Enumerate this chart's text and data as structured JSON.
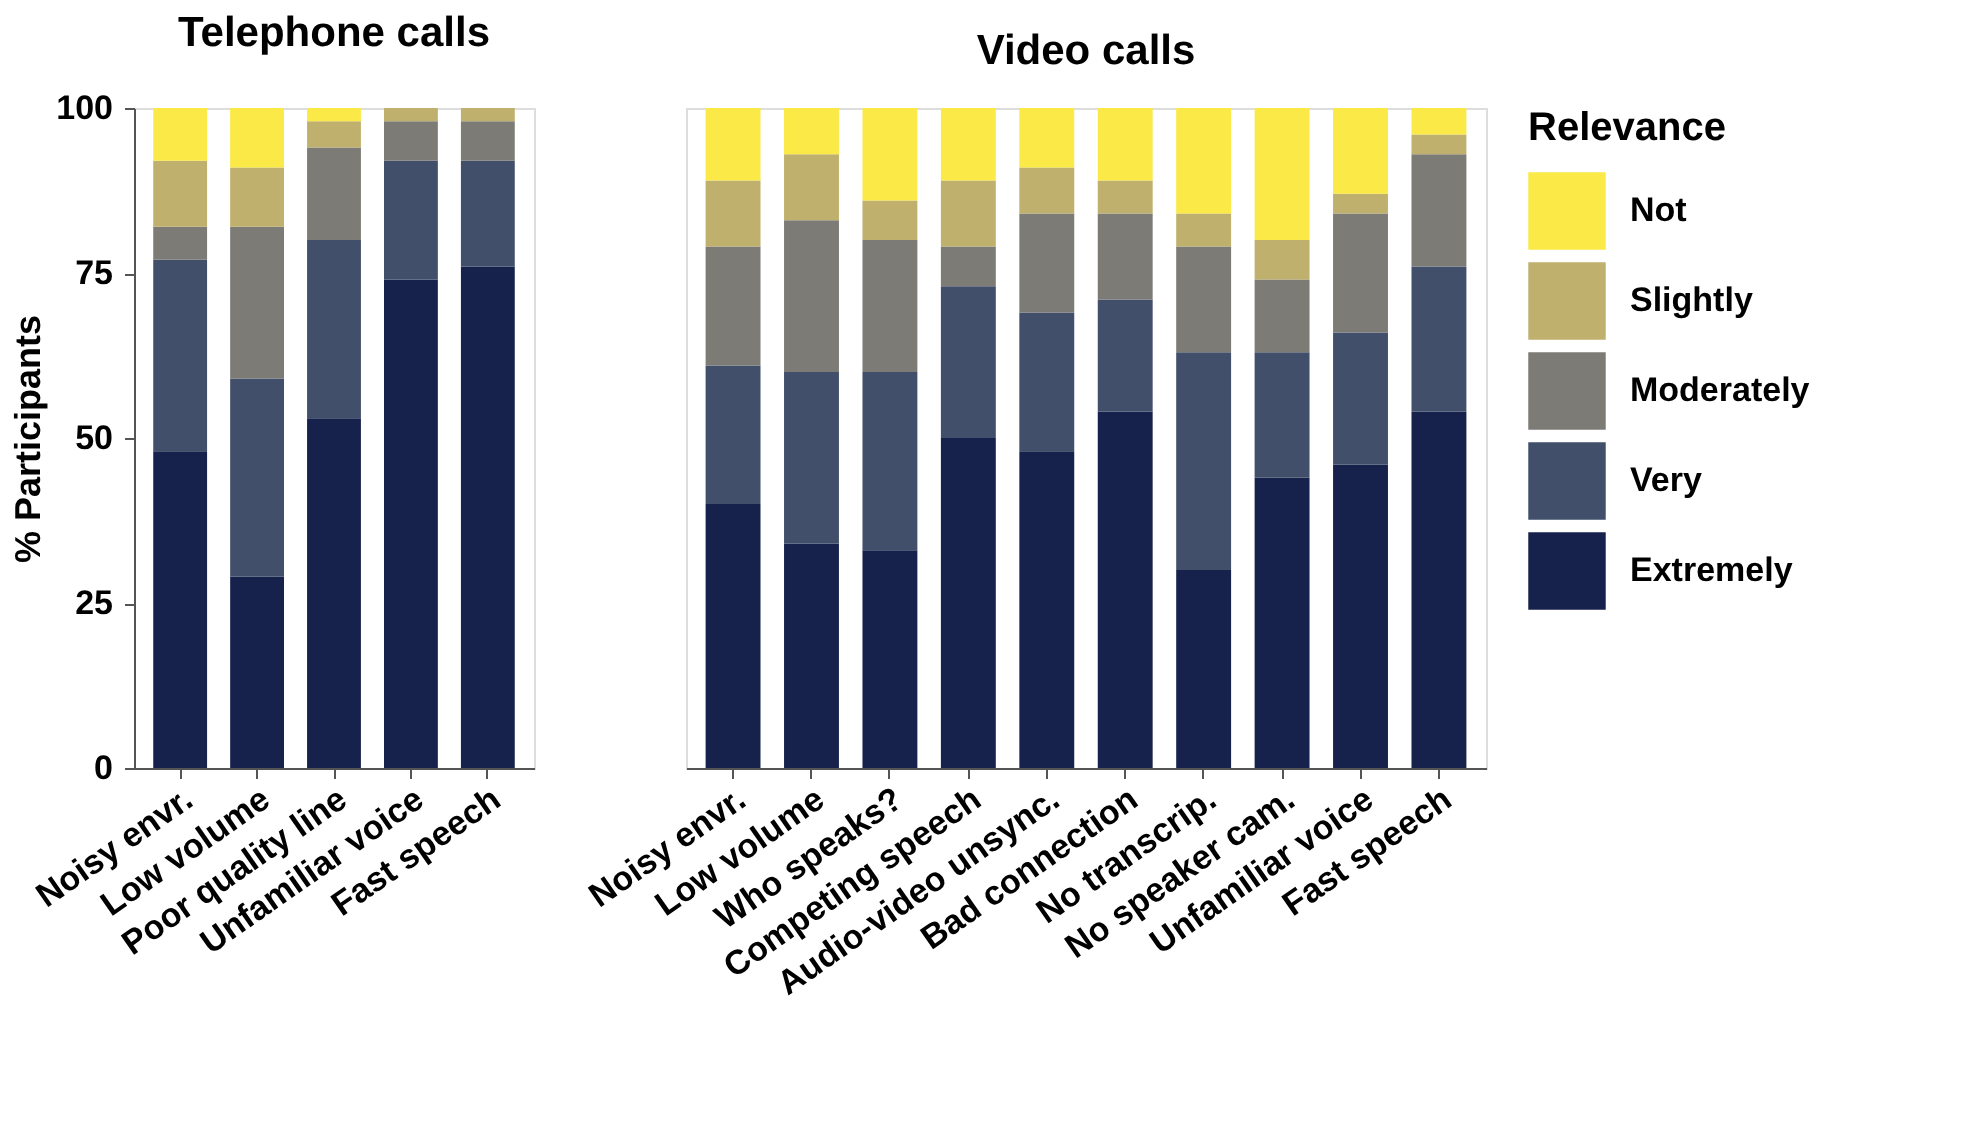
{
  "chart_data": [
    {
      "type": "bar",
      "title": "Telephone calls",
      "ylabel": "% Participants",
      "stacked": true,
      "legend": "right",
      "grid": false,
      "categories": [
        "Noisy envr.",
        "Low volume",
        "Poor quality line",
        "Unfamiliar voice",
        "Fast speech"
      ],
      "ylim": [
        0,
        100
      ],
      "yticks": [
        0,
        25,
        50,
        75,
        100
      ],
      "series": [
        {
          "name": "Extremely",
          "color": "#16224b",
          "values": [
            48,
            29,
            53,
            74,
            76
          ]
        },
        {
          "name": "Very",
          "color": "#414f6b",
          "values": [
            29,
            30,
            27,
            18,
            16
          ]
        },
        {
          "name": "Moderately",
          "color": "#7c7b76",
          "values": [
            5,
            23,
            14,
            6,
            6
          ]
        },
        {
          "name": "Slightly",
          "color": "#bfb06d",
          "values": [
            10,
            9,
            4,
            2,
            2
          ]
        },
        {
          "name": "Not",
          "color": "#fae946",
          "values": [
            8,
            9,
            2,
            0,
            0
          ]
        }
      ]
    },
    {
      "type": "bar",
      "title": "Video calls",
      "legend_title": "Relevance",
      "stacked": true,
      "legend": "right",
      "grid": false,
      "tick_labels": "x",
      "categories": [
        "Noisy envr.",
        "Low volume",
        "Who speaks?",
        "Competing speech",
        "Audio-video unsync.",
        "Bad connection",
        "No transcrip.",
        "No speaker cam.",
        "Unfamiliar voice",
        "Fast speech"
      ],
      "ylim": [
        0,
        100
      ],
      "yticks": [
        0,
        25,
        50,
        75,
        100
      ],
      "series": [
        {
          "name": "Extremely",
          "color": "#16224b",
          "values": [
            40,
            34,
            33,
            50,
            48,
            54,
            30,
            44,
            46,
            54
          ]
        },
        {
          "name": "Very",
          "color": "#414f6b",
          "values": [
            21,
            26,
            27,
            23,
            21,
            17,
            33,
            19,
            20,
            22
          ]
        },
        {
          "name": "Moderately",
          "color": "#7c7b76",
          "values": [
            18,
            23,
            20,
            6,
            15,
            13,
            16,
            11,
            18,
            17
          ]
        },
        {
          "name": "Slightly",
          "color": "#bfb06d",
          "values": [
            10,
            10,
            6,
            10,
            7,
            5,
            5,
            6,
            3,
            3
          ]
        },
        {
          "name": "Not",
          "color": "#fae946",
          "values": [
            11,
            7,
            14,
            11,
            9,
            11,
            16,
            20,
            13,
            4
          ]
        }
      ]
    }
  ]
}
